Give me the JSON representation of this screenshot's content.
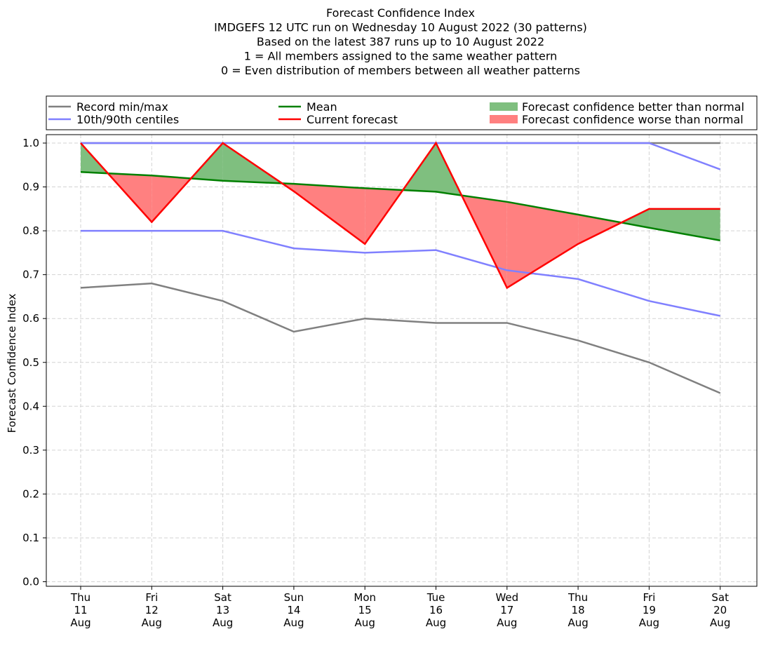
{
  "chart_data": {
    "type": "line",
    "title_lines": [
      "Forecast Confidence Index",
      "IMDGEFS 12 UTC run on Wednesday 10 August 2022 (30 patterns)",
      "Based on the latest 387 runs up to 10 August 2022",
      "1 = All members assigned to the same weather pattern",
      "0 = Even distribution of members between all weather patterns"
    ],
    "ylabel": "Forecast Confidence Index",
    "ylim": [
      0,
      1
    ],
    "y_ticks": [
      "0.0",
      "0.1",
      "0.2",
      "0.3",
      "0.4",
      "0.5",
      "0.6",
      "0.7",
      "0.8",
      "0.9",
      "1.0"
    ],
    "grid": true,
    "legend_position": "top",
    "categories": [
      [
        "Thu",
        "11",
        "Aug"
      ],
      [
        "Fri",
        "12",
        "Aug"
      ],
      [
        "Sat",
        "13",
        "Aug"
      ],
      [
        "Sun",
        "14",
        "Aug"
      ],
      [
        "Mon",
        "15",
        "Aug"
      ],
      [
        "Tue",
        "16",
        "Aug"
      ],
      [
        "Wed",
        "17",
        "Aug"
      ],
      [
        "Thu",
        "18",
        "Aug"
      ],
      [
        "Fri",
        "19",
        "Aug"
      ],
      [
        "Sat",
        "20",
        "Aug"
      ]
    ],
    "series": {
      "record_min": [
        0.67,
        0.68,
        0.64,
        0.57,
        0.6,
        0.59,
        0.59,
        0.55,
        0.5,
        0.43
      ],
      "record_max": [
        1.0,
        1.0,
        1.0,
        1.0,
        1.0,
        1.0,
        1.0,
        1.0,
        1.0,
        1.0
      ],
      "p10": [
        0.8,
        0.8,
        0.8,
        0.76,
        0.75,
        0.756,
        0.71,
        0.69,
        0.64,
        0.606
      ],
      "p90": [
        1.0,
        1.0,
        1.0,
        1.0,
        1.0,
        1.0,
        1.0,
        1.0,
        1.0,
        0.94
      ],
      "mean": [
        0.934,
        0.926,
        0.914,
        0.907,
        0.897,
        0.889,
        0.866,
        0.837,
        0.807,
        0.778
      ],
      "current": [
        1.0,
        0.82,
        1.0,
        0.89,
        0.77,
        1.0,
        0.67,
        0.77,
        0.85,
        0.85
      ]
    },
    "legend": [
      {
        "label": "Record min/max",
        "kind": "line",
        "color": "#808080"
      },
      {
        "label": "Mean",
        "kind": "line",
        "color": "#008000"
      },
      {
        "label": "Forecast confidence better than normal",
        "kind": "patch",
        "color": "#7fbf7f"
      },
      {
        "label": "10th/90th centiles",
        "kind": "line",
        "color": "#8080ff"
      },
      {
        "label": "Current forecast",
        "kind": "line",
        "color": "#ff0000"
      },
      {
        "label": "Forecast confidence worse than normal",
        "kind": "patch",
        "color": "#ff8080"
      }
    ],
    "colors": {
      "record": "#808080",
      "centiles": "#8080ff",
      "mean": "#008000",
      "current": "#ff0000",
      "better_fill": "#7fbf7f",
      "worse_fill": "#ff8080",
      "grid": "#d3d3d3"
    }
  }
}
